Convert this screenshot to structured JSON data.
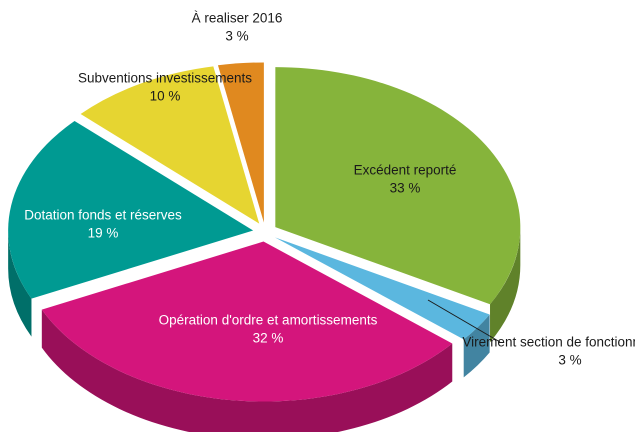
{
  "chart_data": {
    "type": "pie",
    "categories": [
      "Excédent reporté",
      "Virement section de fonctionnement",
      "Opération d'ordre et amortissements",
      "Dotation fonds et réserves",
      "Subventions investissements",
      "À realiser 2016"
    ],
    "values": [
      33,
      3,
      32,
      19,
      10,
      3
    ],
    "value_labels": [
      "33 %",
      "3 %",
      "32 %",
      "19 %",
      "10 %",
      "3 %"
    ],
    "colors": [
      "#86b43b",
      "#5bb7df",
      "#d4157c",
      "#009a92",
      "#e6d531",
      "#e0891f"
    ]
  }
}
